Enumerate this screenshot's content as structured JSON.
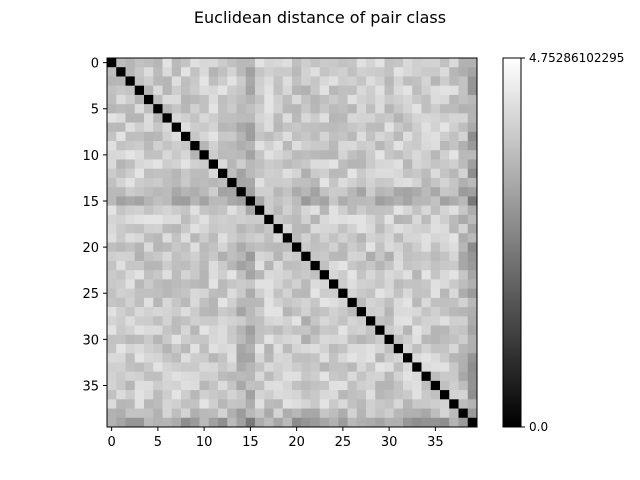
{
  "chart_data": {
    "type": "heatmap",
    "title": "Euclidean distance of pair class",
    "xlabel": "",
    "ylabel": "",
    "size": 40,
    "colormap": "gray",
    "x_ticks": [
      0,
      5,
      10,
      15,
      20,
      25,
      30,
      35
    ],
    "y_ticks": [
      0,
      5,
      10,
      15,
      20,
      25,
      30,
      35
    ],
    "y_inverted": true,
    "value_range": [
      0.0,
      4.75286102295
    ],
    "colorbar": {
      "min_label": "0.0",
      "max_label": "4.75286102295"
    },
    "diagonal_value": 0.0,
    "typical_value": 3.8,
    "note_rows": "rows/cols 14-15 darker (~3.3), row/col 39 darkest off-diagonal (~3.0)",
    "row_offsets": [
      0,
      0,
      0,
      0,
      0,
      0,
      0,
      0,
      0,
      0,
      0,
      0,
      0,
      0,
      -0.35,
      -0.45,
      0,
      0,
      0,
      0,
      0,
      -0.15,
      0,
      0,
      0,
      0,
      0,
      0,
      0,
      0,
      0,
      0,
      0,
      0,
      0,
      0,
      0,
      0,
      -0.25,
      -0.75
    ],
    "values_note": "Off-diagonal cells vary roughly 3.0-4.5; diagonal is exactly 0.0",
    "grid": false,
    "legend": "none"
  }
}
